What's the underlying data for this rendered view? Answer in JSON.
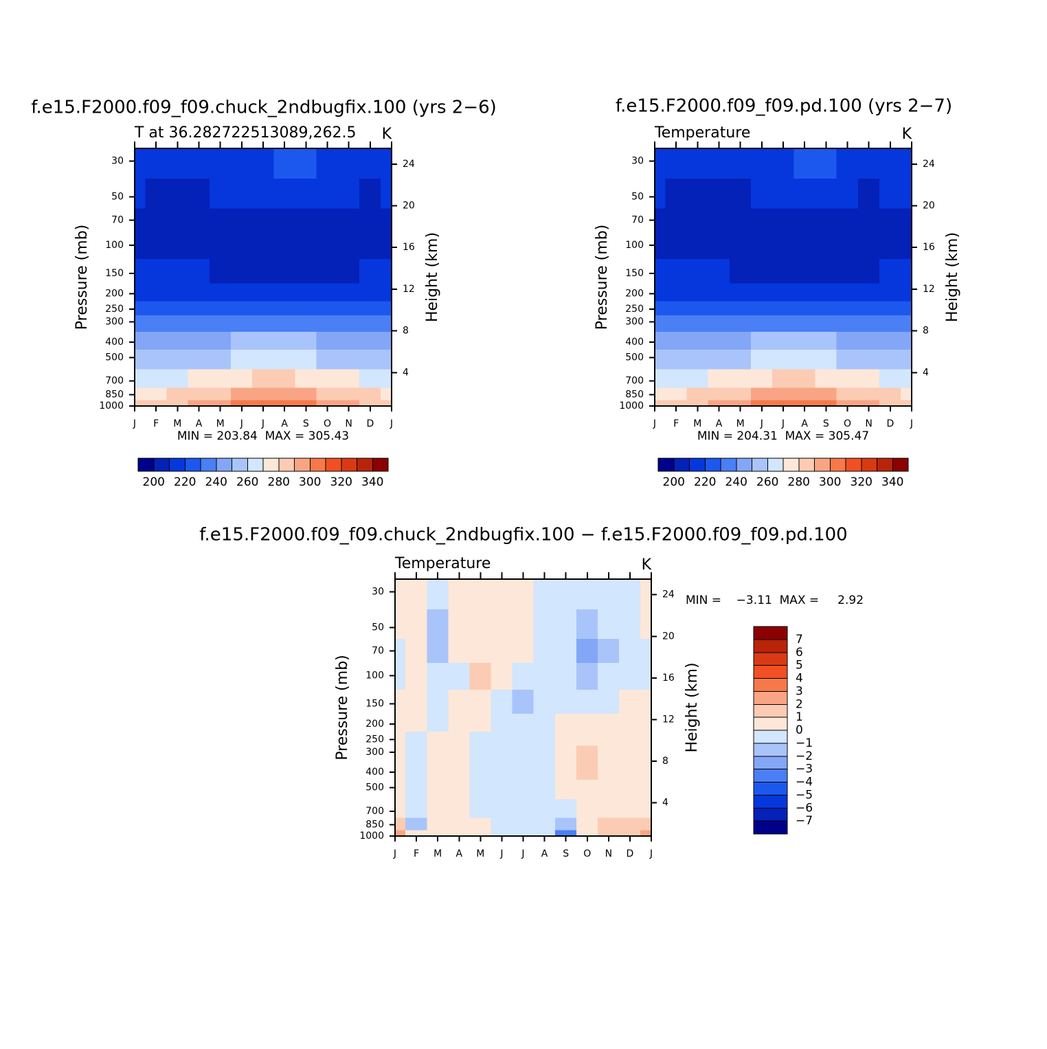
{
  "chart_data": [
    {
      "type": "contour",
      "title": "f.e15.F2000.f09_f09.chuck_2ndbugfix.100 (yrs 2−6)",
      "subtitle": "T at 36.282722513089,262.5",
      "units": "K",
      "ylabel": "Pressure (mb)",
      "y2label": "Height (km)",
      "annotation": "MIN = 203.84  MAX = 305.43",
      "categories": [
        "J",
        "F",
        "M",
        "A",
        "M",
        "J",
        "J",
        "A",
        "S",
        "O",
        "N",
        "D",
        "J"
      ],
      "y": [
        30,
        50,
        70,
        100,
        150,
        200,
        250,
        300,
        400,
        500,
        700,
        850,
        1000
      ],
      "z": [
        [
          214,
          214,
          214,
          214,
          215,
          216,
          219,
          221,
          220,
          216,
          214,
          214,
          214
        ],
        [
          210.5,
          208,
          208.5,
          209,
          210.5,
          211,
          212,
          212,
          212,
          211,
          210.5,
          209,
          210.5
        ],
        [
          207,
          205,
          205,
          206,
          206,
          207,
          207,
          207,
          207,
          207,
          206,
          205,
          207
        ],
        [
          207,
          205,
          205,
          205,
          205,
          205,
          205,
          205,
          205,
          205,
          205,
          206,
          207
        ],
        [
          213,
          211,
          211,
          211,
          208,
          208,
          208,
          208,
          208,
          208,
          209,
          211,
          213
        ],
        [
          216,
          216,
          216,
          215,
          217,
          218,
          219,
          219,
          219,
          218,
          217,
          216,
          216
        ],
        [
          222,
          222,
          222,
          221,
          223,
          224,
          225,
          225,
          225,
          224,
          223,
          222,
          222
        ],
        [
          230,
          230,
          230,
          231,
          233,
          236,
          238,
          238,
          236,
          233,
          231,
          230,
          230
        ],
        [
          243,
          243,
          243,
          245,
          248,
          251,
          253,
          253,
          251,
          248,
          245,
          243,
          243
        ],
        [
          253,
          253,
          253,
          255,
          258,
          262,
          264,
          264,
          262,
          258,
          255,
          253,
          253
        ],
        [
          268,
          268,
          269,
          272,
          276,
          279,
          281,
          281,
          279,
          275,
          272,
          269,
          268
        ],
        [
          279,
          279,
          281,
          284,
          288,
          292,
          294,
          294,
          292,
          288,
          284,
          280,
          279
        ],
        [
          284,
          284,
          287,
          290,
          296,
          301,
          305,
          305,
          301,
          296,
          290,
          286,
          284
        ]
      ],
      "log": true,
      "ylim": [
        1000,
        25
      ],
      "yticks": [
        30,
        50,
        70,
        100,
        150,
        200,
        250,
        300,
        400,
        500,
        700,
        850,
        1000
      ],
      "y2lim": [
        0.8,
        25.5
      ],
      "y2ticks": [
        4,
        8,
        12,
        16,
        20,
        24
      ],
      "levels": [
        200,
        210,
        220,
        230,
        240,
        250,
        260,
        270,
        280,
        290,
        300,
        310,
        320,
        330,
        340
      ],
      "colors": [
        "#00008a",
        "#0421b8",
        "#0537dc",
        "#1c58ee",
        "#4a7ff5",
        "#84a6f7",
        "#a9c4fa",
        "#d2e6fd",
        "#fde7d8",
        "#fccbb3",
        "#f9a585",
        "#f7794a",
        "#f15022",
        "#d93a14",
        "#b8240a",
        "#8b0000"
      ],
      "colorbar": "horizontal",
      "colorbar_ticks": [
        200,
        220,
        240,
        260,
        280,
        300,
        320,
        340
      ]
    },
    {
      "type": "contour",
      "title": "f.e15.F2000.f09_f09.pd.100 (yrs 2−7)",
      "subtitle": "Temperature",
      "units": "K",
      "ylabel": "Pressure (mb)",
      "y2label": "Height (km)",
      "annotation": "MIN = 204.31  MAX = 305.47",
      "categories": [
        "J",
        "F",
        "M",
        "A",
        "M",
        "J",
        "J",
        "A",
        "S",
        "O",
        "N",
        "D",
        "J"
      ],
      "y": [
        30,
        50,
        70,
        100,
        150,
        200,
        250,
        300,
        400,
        500,
        700,
        850,
        1000
      ],
      "z": [
        [
          214,
          214,
          214,
          214,
          214,
          215,
          217,
          220,
          221,
          217,
          214,
          214,
          214
        ],
        [
          210,
          208.5,
          208,
          208.5,
          209,
          210.5,
          210.5,
          210.5,
          210.5,
          210.5,
          209.5,
          210,
          210
        ],
        [
          207,
          205,
          205,
          206,
          206,
          207,
          207,
          207,
          207,
          207,
          206,
          205,
          207
        ],
        [
          207,
          205,
          205,
          205,
          205,
          205,
          205,
          205,
          205,
          205,
          205,
          206,
          207
        ],
        [
          213,
          212,
          211,
          211,
          208,
          208,
          208,
          208,
          208,
          208,
          209,
          211,
          213
        ],
        [
          216,
          216,
          216,
          215,
          217,
          218,
          219,
          219,
          219,
          218,
          217,
          216,
          216
        ],
        [
          222,
          222,
          222,
          221,
          223,
          224,
          225,
          225,
          225,
          224,
          223,
          222,
          222
        ],
        [
          230,
          230,
          230,
          231,
          233,
          236,
          238,
          238,
          236,
          233,
          231,
          230,
          230
        ],
        [
          243,
          243,
          243,
          245,
          248,
          251,
          253,
          253,
          251,
          248,
          245,
          243,
          243
        ],
        [
          253,
          253,
          253,
          255,
          258,
          262,
          264,
          264,
          262,
          258,
          255,
          253,
          253
        ],
        [
          268,
          268,
          269,
          272,
          276,
          279,
          281,
          281,
          279,
          275,
          272,
          269,
          268
        ],
        [
          279,
          279,
          281,
          284,
          288,
          292,
          294,
          294,
          292,
          288,
          284,
          280,
          279
        ],
        [
          284,
          284,
          287,
          290,
          296,
          301,
          305,
          305,
          301,
          296,
          290,
          286,
          284
        ]
      ],
      "log": true,
      "ylim": [
        1000,
        25
      ],
      "yticks": [
        30,
        50,
        70,
        100,
        150,
        200,
        250,
        300,
        400,
        500,
        700,
        850,
        1000
      ],
      "y2lim": [
        0.8,
        25.5
      ],
      "y2ticks": [
        4,
        8,
        12,
        16,
        20,
        24
      ],
      "levels": [
        200,
        210,
        220,
        230,
        240,
        250,
        260,
        270,
        280,
        290,
        300,
        310,
        320,
        330,
        340
      ],
      "colors": [
        "#00008a",
        "#0421b8",
        "#0537dc",
        "#1c58ee",
        "#4a7ff5",
        "#84a6f7",
        "#a9c4fa",
        "#d2e6fd",
        "#fde7d8",
        "#fccbb3",
        "#f9a585",
        "#f7794a",
        "#f15022",
        "#d93a14",
        "#b8240a",
        "#8b0000"
      ],
      "colorbar": "horizontal",
      "colorbar_ticks": [
        200,
        220,
        240,
        260,
        280,
        300,
        320,
        340
      ]
    },
    {
      "type": "contour",
      "title": "f.e15.F2000.f09_f09.chuck_2ndbugfix.100 − f.e15.F2000.f09_f09.pd.100",
      "subtitle": "Temperature",
      "units": "K",
      "ylabel": "Pressure (mb)",
      "y2label": "Height (km)",
      "annotation": "MIN =    −3.11  MAX =     2.92",
      "categories": [
        "J",
        "F",
        "M",
        "A",
        "M",
        "J",
        "J",
        "A",
        "S",
        "O",
        "N",
        "D",
        "J"
      ],
      "y": [
        30,
        50,
        70,
        100,
        150,
        200,
        250,
        300,
        400,
        500,
        700,
        850,
        1000
      ],
      "z": [
        [
          0.3,
          0.2,
          -0.3,
          0.3,
          0.3,
          0.3,
          0.4,
          -0.4,
          -0.5,
          -0.6,
          -0.5,
          -0.3,
          0.2
        ],
        [
          0.2,
          0.3,
          -1.2,
          0.3,
          0.4,
          0.3,
          0.2,
          -0.4,
          -0.6,
          -1.2,
          -1.0,
          -0.4,
          0.1
        ],
        [
          -0.2,
          0.3,
          -1.3,
          0.3,
          0.5,
          0.3,
          0.2,
          -0.4,
          -0.8,
          -2.1,
          -1.3,
          -0.4,
          -0.2
        ],
        [
          -0.3,
          0.2,
          -1.0,
          -0.2,
          1.1,
          0.2,
          -0.2,
          -0.4,
          -0.8,
          -1.4,
          -1.0,
          -0.3,
          -0.2
        ],
        [
          0.2,
          0.2,
          -0.4,
          0.3,
          0.4,
          -0.5,
          -1.1,
          -0.4,
          -0.3,
          -1.0,
          -0.3,
          0.2,
          0.2
        ],
        [
          0.3,
          0.2,
          -0.5,
          0.2,
          0.3,
          -0.4,
          -0.5,
          -0.4,
          0.3,
          0.4,
          0.4,
          0.3,
          0.3
        ],
        [
          0.3,
          -0.3,
          0.3,
          0.2,
          -0.3,
          -0.4,
          -0.4,
          -0.3,
          0.3,
          0.4,
          0.3,
          0.3,
          0.3
        ],
        [
          0.3,
          -0.4,
          0.3,
          0.2,
          -0.4,
          -0.5,
          -0.5,
          -0.3,
          0.3,
          1.2,
          0.4,
          0.3,
          0.3
        ],
        [
          0.3,
          -0.4,
          0.3,
          0.1,
          -0.4,
          -0.5,
          -0.5,
          -0.4,
          0.3,
          1.3,
          0.4,
          0.3,
          0.3
        ],
        [
          0.3,
          -0.4,
          0.3,
          0.2,
          -0.5,
          -0.6,
          -0.5,
          -0.4,
          0.3,
          0.4,
          0.3,
          0.3,
          0.3
        ],
        [
          0.3,
          -0.4,
          0.3,
          0.2,
          -0.3,
          -0.4,
          -0.4,
          -0.3,
          -0.4,
          0.3,
          0.4,
          0.6,
          0.8
        ],
        [
          1.1,
          -1.1,
          0.4,
          0.3,
          0.3,
          -0.3,
          -0.4,
          -0.7,
          -2.0,
          0.2,
          1.2,
          1.1,
          1.5
        ],
        [
          2.9,
          0.8,
          0.5,
          0.3,
          0.2,
          -0.2,
          -0.3,
          -0.5,
          -3.1,
          0.2,
          1.2,
          1.0,
          2.0
        ]
      ],
      "log": true,
      "ylim": [
        1000,
        25
      ],
      "yticks": [
        30,
        50,
        70,
        100,
        150,
        200,
        250,
        300,
        400,
        500,
        700,
        850,
        1000
      ],
      "y2lim": [
        0.8,
        25.5
      ],
      "y2ticks": [
        4,
        8,
        12,
        16,
        20,
        24
      ],
      "levels": [
        -7,
        -6,
        -5,
        -4,
        -3,
        -2,
        -1,
        0,
        1,
        2,
        3,
        4,
        5,
        6,
        7
      ],
      "colors": [
        "#00008a",
        "#0421b8",
        "#0537dc",
        "#1c58ee",
        "#4a7ff5",
        "#84a6f7",
        "#a9c4fa",
        "#d2e6fd",
        "#fde7d8",
        "#fccbb3",
        "#f9a585",
        "#f7794a",
        "#f15022",
        "#d93a14",
        "#b8240a",
        "#8b0000"
      ],
      "colorbar": "vertical",
      "colorbar_ticks": [
        {
          "value": -7,
          "label": "−7"
        },
        {
          "value": -6,
          "label": "−6"
        },
        {
          "value": -5,
          "label": "−5"
        },
        {
          "value": -4,
          "label": "−4"
        },
        {
          "value": -3,
          "label": "−3"
        },
        {
          "value": -2,
          "label": "−2"
        },
        {
          "value": -1,
          "label": "−1"
        },
        0,
        1,
        2,
        3,
        4,
        5,
        6,
        7
      ]
    }
  ]
}
